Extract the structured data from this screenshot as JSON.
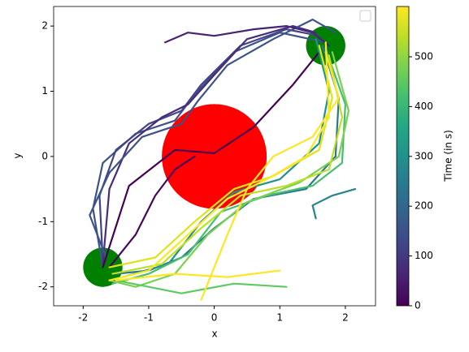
{
  "chart_data": {
    "type": "trajectory",
    "xlabel": "x",
    "ylabel": "y",
    "xlim": [
      -2.45,
      2.46
    ],
    "ylim": [
      -2.29,
      2.3
    ],
    "xticks": [
      -2,
      -1,
      0,
      1,
      2
    ],
    "yticks": [
      -2,
      -1,
      0,
      1,
      2
    ],
    "circles": [
      {
        "cx": 0,
        "cy": 0,
        "r": 0.8,
        "color": "#ff0000"
      },
      {
        "cx": -1.7,
        "cy": -1.7,
        "r": 0.3,
        "color": "#008000"
      },
      {
        "cx": 1.7,
        "cy": 1.7,
        "r": 0.3,
        "color": "#008000"
      }
    ],
    "series": [
      {
        "color": "#3b528b",
        "x": [
          -1.7,
          -1.85,
          -1.7,
          -1.2,
          -0.6,
          -0.3,
          0.3,
          1.0,
          1.7
        ],
        "y": [
          -1.7,
          -0.8,
          -0.1,
          0.35,
          0.55,
          0.95,
          1.6,
          1.9,
          1.75
        ]
      },
      {
        "color": "#414487",
        "x": [
          -1.7,
          -1.75,
          -1.5,
          -1.0,
          -0.5,
          -0.2,
          0.4,
          1.1,
          1.6
        ],
        "y": [
          -1.6,
          -0.6,
          0.1,
          0.5,
          0.7,
          1.1,
          1.7,
          1.95,
          1.85
        ]
      },
      {
        "color": "#472d7b",
        "x": [
          -1.7,
          -1.6,
          -1.3,
          -0.8,
          -0.4,
          0.0,
          0.5,
          1.2,
          1.55
        ],
        "y": [
          -1.65,
          -0.5,
          0.2,
          0.6,
          0.8,
          1.25,
          1.8,
          2.0,
          1.9
        ]
      },
      {
        "color": "#3b528b",
        "x": [
          -1.65,
          -1.9,
          -1.6,
          -1.1,
          -0.5,
          -0.25,
          0.2,
          0.9,
          1.5,
          1.85
        ],
        "y": [
          -1.55,
          -0.9,
          -0.25,
          0.3,
          0.5,
          0.85,
          1.4,
          1.8,
          2.1,
          1.9
        ]
      },
      {
        "color": "#482475",
        "x": [
          -0.75,
          -0.4,
          0.0,
          0.6,
          1.1,
          1.5,
          1.75
        ],
        "y": [
          1.75,
          1.9,
          1.85,
          1.95,
          2.0,
          1.9,
          1.7
        ]
      },
      {
        "color": "#440154",
        "x": [
          -1.7,
          -1.3,
          -0.6,
          0.0,
          0.6,
          1.2,
          1.6
        ],
        "y": [
          -1.7,
          -0.45,
          0.1,
          0.05,
          0.45,
          1.1,
          1.6
        ]
      },
      {
        "color": "#46085c",
        "x": [
          -1.6,
          -1.2,
          -0.9,
          -0.6,
          -0.3
        ],
        "y": [
          -1.7,
          -1.2,
          -0.6,
          -0.2,
          0.0
        ]
      },
      {
        "color": "#2a788e",
        "x": [
          1.65,
          1.9,
          1.85,
          1.4,
          0.6,
          0.0,
          -0.5,
          -1.0,
          -1.5
        ],
        "y": [
          1.7,
          0.9,
          0.0,
          -0.5,
          -0.65,
          -1.1,
          -1.55,
          -1.75,
          -1.8
        ]
      },
      {
        "color": "#21918c",
        "x": [
          1.55,
          1.75,
          1.6,
          1.0,
          0.3,
          -0.2,
          -0.7,
          -1.4
        ],
        "y": [
          1.8,
          1.0,
          0.2,
          -0.35,
          -0.55,
          -1.0,
          -1.65,
          -1.85
        ]
      },
      {
        "color": "#25848e",
        "x": [
          2.15,
          1.8,
          1.5,
          1.55
        ],
        "y": [
          -0.5,
          -0.6,
          -0.75,
          -0.95
        ]
      },
      {
        "color": "#44bf70",
        "x": [
          1.7,
          2.0,
          1.95,
          1.5,
          0.8,
          0.1,
          -0.4,
          -1.0,
          -1.55
        ],
        "y": [
          1.65,
          0.8,
          -0.1,
          -0.45,
          -0.6,
          -0.85,
          -1.5,
          -1.8,
          -1.95
        ]
      },
      {
        "color": "#7ad151",
        "x": [
          1.8,
          2.05,
          1.9,
          1.3,
          0.5,
          -0.1,
          -0.6,
          -1.2,
          -1.6
        ],
        "y": [
          1.6,
          0.7,
          0.0,
          -0.4,
          -0.7,
          -1.2,
          -1.8,
          -2.0,
          -1.9
        ]
      },
      {
        "color": "#5ec962",
        "x": [
          -1.5,
          -0.5,
          0.3,
          1.1
        ],
        "y": [
          -1.9,
          -2.1,
          -1.95,
          -2.0
        ]
      },
      {
        "color": "#bddf26",
        "x": [
          1.75,
          1.95,
          1.75,
          1.1,
          0.4,
          -0.2,
          -0.8,
          -1.55
        ],
        "y": [
          1.55,
          0.6,
          -0.2,
          -0.45,
          -0.6,
          -1.1,
          -1.65,
          -1.8
        ]
      },
      {
        "color": "#dfe318",
        "x": [
          1.6,
          1.8,
          1.6,
          0.9,
          0.3,
          -0.3,
          -0.9,
          -1.6
        ],
        "y": [
          1.7,
          0.9,
          0.1,
          -0.3,
          -0.5,
          -1.0,
          -1.55,
          -1.7
        ]
      },
      {
        "color": "#fde725",
        "x": [
          1.7,
          1.75,
          1.4,
          0.8,
          0.2,
          -0.4,
          -1.0,
          -1.6
        ],
        "y": [
          1.75,
          0.6,
          0.0,
          -0.35,
          -0.65,
          -1.2,
          -1.75,
          -1.9
        ]
      },
      {
        "color": "#fde725",
        "x": [
          1.7,
          1.9,
          1.5,
          0.9,
          0.5,
          0.2,
          -0.2
        ],
        "y": [
          1.6,
          0.9,
          0.3,
          0.0,
          -0.5,
          -1.2,
          -2.2
        ]
      },
      {
        "color": "#fde725",
        "x": [
          -1.5,
          -0.6,
          0.2,
          1.0
        ],
        "y": [
          -1.9,
          -1.8,
          -1.85,
          -1.75
        ]
      }
    ],
    "colorbar": {
      "label": "Time (in s)",
      "lim": [
        0,
        601
      ],
      "ticks": [
        0,
        100,
        200,
        300,
        400,
        500
      ]
    }
  }
}
